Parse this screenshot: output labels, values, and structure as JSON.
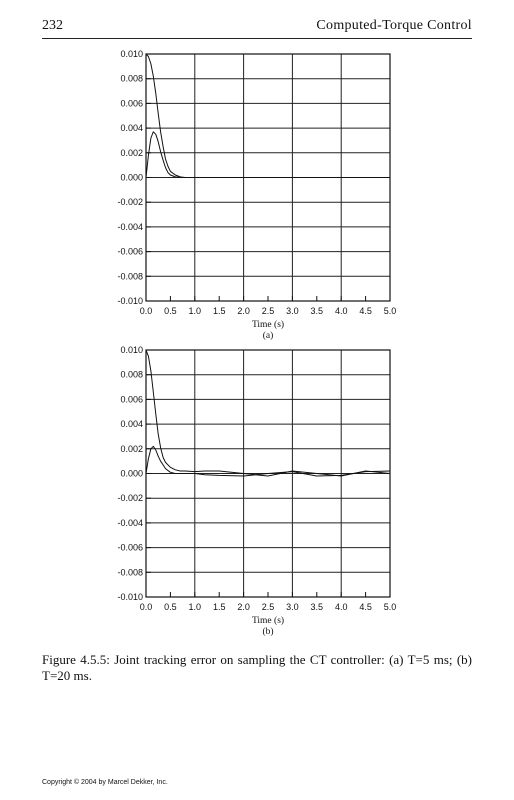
{
  "header": {
    "page_number": "232",
    "running_title": "Computed-Torque Control"
  },
  "chart_data": [
    {
      "type": "line",
      "panel_label": "(a)",
      "title": "",
      "xlabel": "Time (s)",
      "ylabel": "",
      "xlim": [
        0,
        5
      ],
      "ylim": [
        -0.01,
        0.01
      ],
      "x_ticks": [
        "0.0",
        "0.5",
        "1.0",
        "1.5",
        "2.0",
        "2.5",
        "3.0",
        "3.5",
        "4.0",
        "4.5",
        "5.0"
      ],
      "y_ticks": [
        "0.010",
        "0.008",
        "0.006",
        "0.004",
        "0.002",
        "0.000",
        "-0.002",
        "-0.004",
        "-0.006",
        "-0.008",
        "-0.010"
      ],
      "grid": true,
      "series": [
        {
          "x": [
            0,
            0.05,
            0.1,
            0.15,
            0.2,
            0.25,
            0.3,
            0.35,
            0.4,
            0.45,
            0.5,
            0.6,
            0.7,
            0.8,
            0.9,
            1.0,
            1.5,
            2.0,
            3.0,
            4.0,
            5.0
          ],
          "values": [
            0.01,
            0.0098,
            0.0092,
            0.0082,
            0.0068,
            0.0052,
            0.0037,
            0.0025,
            0.0015,
            0.0009,
            0.0005,
            0.0002,
            5e-05,
            0.0,
            0.0,
            0.0,
            0.0,
            0.0,
            0.0,
            0.0,
            0.0
          ]
        },
        {
          "x": [
            0,
            0.05,
            0.1,
            0.15,
            0.2,
            0.25,
            0.3,
            0.35,
            0.4,
            0.45,
            0.5,
            0.6,
            0.7,
            0.8,
            0.9,
            1.0,
            1.5,
            2.0,
            3.0,
            4.0,
            5.0
          ],
          "values": [
            0.0,
            0.0018,
            0.0032,
            0.0037,
            0.0035,
            0.0029,
            0.0021,
            0.0014,
            0.0008,
            0.0004,
            0.0002,
            5e-05,
            0.0,
            0.0,
            0.0,
            0.0,
            0.0,
            0.0,
            0.0,
            0.0,
            0.0
          ]
        }
      ]
    },
    {
      "type": "line",
      "panel_label": "(b)",
      "title": "",
      "xlabel": "Time (s)",
      "ylabel": "",
      "xlim": [
        0,
        5
      ],
      "ylim": [
        -0.01,
        0.01
      ],
      "x_ticks": [
        "0.0",
        "0.5",
        "1.0",
        "1.5",
        "2.0",
        "2.5",
        "3.0",
        "3.5",
        "4.0",
        "4.5",
        "5.0"
      ],
      "y_ticks": [
        "0.010",
        "0.008",
        "0.006",
        "0.004",
        "0.002",
        "0.000",
        "-0.002",
        "-0.004",
        "-0.006",
        "-0.008",
        "-0.010"
      ],
      "grid": true,
      "series": [
        {
          "x": [
            0,
            0.05,
            0.1,
            0.15,
            0.2,
            0.25,
            0.3,
            0.35,
            0.4,
            0.5,
            0.6,
            0.7,
            0.8,
            1.0,
            1.2,
            1.5,
            2.0,
            2.5,
            3.0,
            3.5,
            4.0,
            4.5,
            5.0
          ],
          "values": [
            0.01,
            0.0095,
            0.0083,
            0.0066,
            0.0048,
            0.0032,
            0.0021,
            0.0013,
            0.0009,
            0.0005,
            0.0003,
            0.0002,
            0.0002,
            0.00015,
            0.0002,
            0.0002,
            0.0,
            -0.0002,
            0.0002,
            0.0,
            -0.0002,
            0.0002,
            0.0
          ]
        },
        {
          "x": [
            0,
            0.05,
            0.1,
            0.15,
            0.2,
            0.25,
            0.3,
            0.35,
            0.4,
            0.5,
            0.6,
            0.7,
            0.8,
            1.0,
            1.2,
            1.5,
            2.0,
            2.5,
            3.0,
            3.5,
            4.0,
            4.5,
            5.0
          ],
          "values": [
            0.0,
            0.0012,
            0.002,
            0.0022,
            0.0019,
            0.0014,
            0.001,
            0.0007,
            0.0004,
            0.0001,
            0.0,
            0.0,
            0.0,
            0.0,
            -0.0001,
            -0.00015,
            -0.0002,
            0.0,
            0.00015,
            -0.0002,
            -0.00015,
            0.00015,
            0.0002
          ]
        }
      ]
    }
  ],
  "caption": "Figure 4.5.5: Joint tracking error on sampling the CT controller: (a) T=5 ms; (b) T=20 ms.",
  "footer": {
    "copyright": "Copyright © 2004 by Marcel Dekker, Inc."
  }
}
